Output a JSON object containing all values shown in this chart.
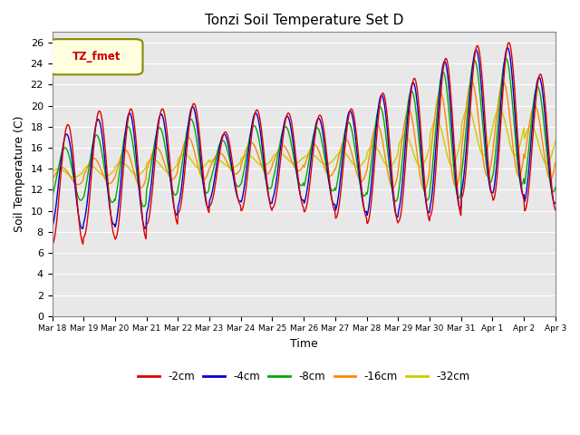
{
  "title": "Tonzi Soil Temperature Set D",
  "xlabel": "Time",
  "ylabel": "Soil Temperature (C)",
  "ylim": [
    0,
    27
  ],
  "yticks": [
    0,
    2,
    4,
    6,
    8,
    10,
    12,
    14,
    16,
    18,
    20,
    22,
    24,
    26
  ],
  "legend_label": "TZ_fmet",
  "series_labels": [
    "-2cm",
    "-4cm",
    "-8cm",
    "-16cm",
    "-32cm"
  ],
  "series_colors": [
    "#dd0000",
    "#0000cc",
    "#00aa00",
    "#ff8800",
    "#cccc00"
  ],
  "n_days": 16,
  "start_day": 18,
  "points_per_day": 48,
  "phases": [
    0.0,
    0.04,
    0.09,
    0.18,
    0.3
  ],
  "amp_2cm": [
    5.7,
    6.0,
    6.2,
    5.5,
    5.2,
    3.5,
    4.8,
    4.5,
    4.6,
    5.2,
    6.2,
    6.8,
    7.5,
    7.2,
    7.5,
    6.5
  ],
  "base_2cm": [
    12.5,
    13.5,
    13.5,
    14.2,
    15.0,
    14.0,
    14.8,
    14.8,
    14.5,
    14.5,
    15.0,
    15.8,
    17.0,
    18.5,
    18.5,
    16.5
  ],
  "amp_4cm": [
    4.5,
    5.0,
    5.5,
    4.8,
    4.8,
    3.2,
    4.3,
    4.0,
    4.1,
    4.8,
    5.8,
    6.2,
    7.0,
    6.8,
    7.0,
    6.0
  ],
  "base_4cm": [
    12.8,
    13.7,
    13.8,
    14.4,
    15.1,
    14.1,
    15.0,
    15.0,
    14.7,
    14.7,
    15.2,
    16.0,
    17.2,
    18.5,
    18.5,
    16.7
  ],
  "amp_8cm": [
    2.5,
    3.2,
    3.8,
    3.2,
    3.5,
    2.2,
    3.0,
    2.8,
    3.0,
    3.5,
    4.5,
    5.2,
    6.0,
    5.8,
    6.0,
    5.0
  ],
  "base_8cm": [
    13.5,
    14.0,
    14.2,
    14.7,
    15.2,
    14.5,
    15.1,
    15.2,
    14.9,
    14.9,
    15.4,
    16.2,
    17.2,
    18.5,
    18.5,
    16.8
  ],
  "amp_16cm": [
    0.8,
    1.2,
    1.8,
    1.5,
    2.0,
    1.0,
    1.5,
    1.2,
    1.5,
    2.0,
    3.0,
    3.8,
    4.5,
    4.5,
    4.5,
    3.5
  ],
  "base_16cm": [
    13.3,
    13.8,
    14.0,
    14.5,
    15.0,
    14.5,
    15.0,
    15.0,
    14.8,
    14.8,
    15.2,
    15.8,
    16.8,
    17.8,
    17.8,
    16.5
  ],
  "amp_32cm": [
    0.4,
    0.5,
    0.6,
    0.6,
    0.7,
    0.4,
    0.5,
    0.5,
    0.5,
    0.7,
    1.0,
    1.5,
    2.2,
    2.2,
    2.2,
    1.8
  ],
  "base_32cm": [
    13.6,
    13.8,
    14.0,
    14.3,
    14.7,
    14.5,
    14.8,
    15.0,
    14.9,
    14.9,
    15.2,
    15.7,
    16.5,
    17.5,
    17.5,
    16.3
  ]
}
